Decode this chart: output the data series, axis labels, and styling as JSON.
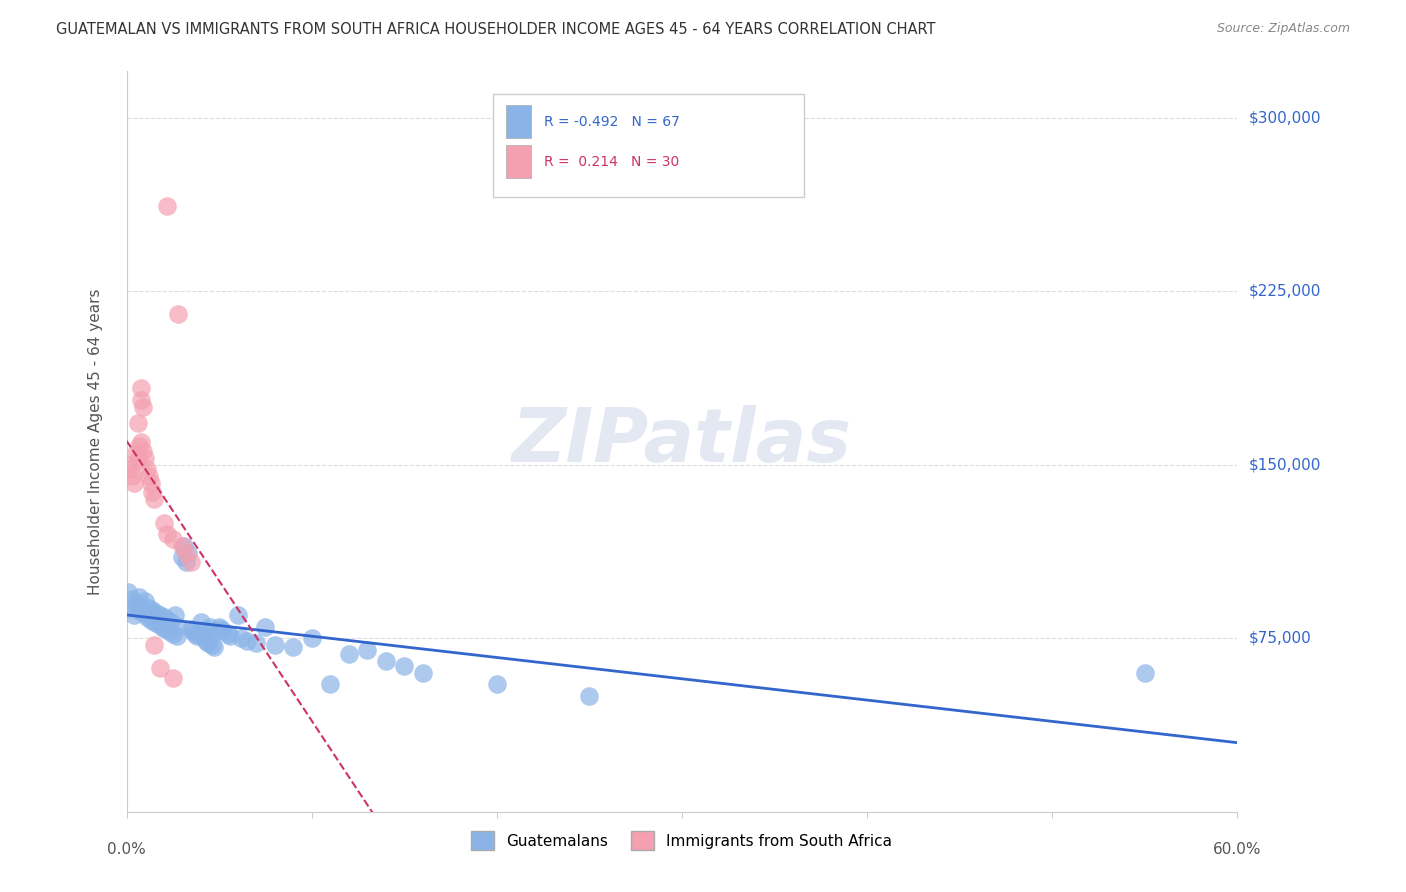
{
  "title": "GUATEMALAN VS IMMIGRANTS FROM SOUTH AFRICA HOUSEHOLDER INCOME AGES 45 - 64 YEARS CORRELATION CHART",
  "source": "Source: ZipAtlas.com",
  "ylabel": "Householder Income Ages 45 - 64 years",
  "ytick_labels": [
    "$75,000",
    "$150,000",
    "$225,000",
    "$300,000"
  ],
  "ytick_values": [
    75000,
    150000,
    225000,
    300000
  ],
  "ymin": 0,
  "ymax": 320000,
  "xmin": 0.0,
  "xmax": 0.6,
  "legend_blue_label": "Guatemalans",
  "legend_pink_label": "Immigrants from South Africa",
  "watermark": "ZIPatlas",
  "blue_color": "#8ab4e8",
  "pink_color": "#f4a0b0",
  "blue_line_color": "#3366cc",
  "pink_line_color": "#cc3366",
  "blue_scatter": [
    [
      0.001,
      95000
    ],
    [
      0.002,
      88000
    ],
    [
      0.003,
      92000
    ],
    [
      0.004,
      85000
    ],
    [
      0.005,
      90000
    ],
    [
      0.006,
      87000
    ],
    [
      0.007,
      93000
    ],
    [
      0.008,
      89000
    ],
    [
      0.009,
      86000
    ],
    [
      0.01,
      91000
    ],
    [
      0.011,
      84000
    ],
    [
      0.012,
      88000
    ],
    [
      0.013,
      83000
    ],
    [
      0.014,
      87000
    ],
    [
      0.015,
      82000
    ],
    [
      0.016,
      86000
    ],
    [
      0.017,
      81000
    ],
    [
      0.018,
      85000
    ],
    [
      0.019,
      80000
    ],
    [
      0.02,
      84000
    ],
    [
      0.021,
      79000
    ],
    [
      0.022,
      83000
    ],
    [
      0.023,
      78000
    ],
    [
      0.024,
      82000
    ],
    [
      0.025,
      77000
    ],
    [
      0.026,
      85000
    ],
    [
      0.027,
      76000
    ],
    [
      0.028,
      80000
    ],
    [
      0.03,
      110000
    ],
    [
      0.031,
      115000
    ],
    [
      0.032,
      108000
    ],
    [
      0.033,
      112000
    ],
    [
      0.035,
      79000
    ],
    [
      0.036,
      78000
    ],
    [
      0.037,
      77000
    ],
    [
      0.038,
      76000
    ],
    [
      0.04,
      82000
    ],
    [
      0.041,
      78000
    ],
    [
      0.042,
      75000
    ],
    [
      0.043,
      74000
    ],
    [
      0.044,
      73000
    ],
    [
      0.045,
      80000
    ],
    [
      0.046,
      72000
    ],
    [
      0.047,
      71000
    ],
    [
      0.048,
      78000
    ],
    [
      0.05,
      80000
    ],
    [
      0.051,
      79000
    ],
    [
      0.052,
      78000
    ],
    [
      0.055,
      77000
    ],
    [
      0.056,
      76000
    ],
    [
      0.06,
      85000
    ],
    [
      0.062,
      75000
    ],
    [
      0.065,
      74000
    ],
    [
      0.07,
      73000
    ],
    [
      0.075,
      80000
    ],
    [
      0.08,
      72000
    ],
    [
      0.09,
      71000
    ],
    [
      0.1,
      75000
    ],
    [
      0.11,
      55000
    ],
    [
      0.12,
      68000
    ],
    [
      0.13,
      70000
    ],
    [
      0.14,
      65000
    ],
    [
      0.15,
      63000
    ],
    [
      0.16,
      60000
    ],
    [
      0.2,
      55000
    ],
    [
      0.25,
      50000
    ],
    [
      0.55,
      60000
    ]
  ],
  "pink_scatter": [
    [
      0.001,
      150000
    ],
    [
      0.002,
      148000
    ],
    [
      0.003,
      145000
    ],
    [
      0.004,
      142000
    ],
    [
      0.005,
      155000
    ],
    [
      0.006,
      152000
    ],
    [
      0.007,
      158000
    ],
    [
      0.008,
      160000
    ],
    [
      0.009,
      156000
    ],
    [
      0.01,
      153000
    ],
    [
      0.011,
      148000
    ],
    [
      0.012,
      145000
    ],
    [
      0.013,
      142000
    ],
    [
      0.014,
      138000
    ],
    [
      0.015,
      135000
    ],
    [
      0.02,
      125000
    ],
    [
      0.022,
      120000
    ],
    [
      0.025,
      118000
    ],
    [
      0.03,
      115000
    ],
    [
      0.032,
      112000
    ],
    [
      0.035,
      108000
    ],
    [
      0.022,
      262000
    ],
    [
      0.028,
      215000
    ],
    [
      0.008,
      178000
    ],
    [
      0.009,
      175000
    ],
    [
      0.008,
      183000
    ],
    [
      0.006,
      168000
    ],
    [
      0.015,
      72000
    ],
    [
      0.018,
      62000
    ],
    [
      0.025,
      58000
    ]
  ],
  "background_color": "#ffffff",
  "grid_color": "#dddddd"
}
